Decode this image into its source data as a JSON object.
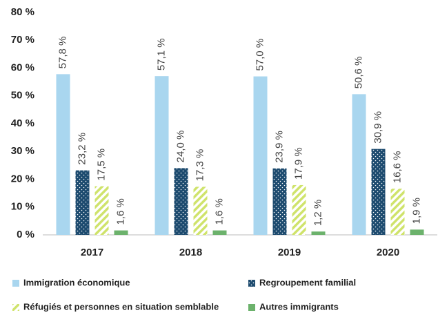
{
  "chart_data": {
    "type": "bar",
    "categories": [
      "2017",
      "2018",
      "2019",
      "2020"
    ],
    "series": [
      {
        "name": "Immigration économique",
        "color": "#a9d6ef",
        "pattern": "solid",
        "values": [
          57.8,
          57.1,
          57.0,
          50.6
        ],
        "value_labels": [
          "57,8 %",
          "57,1 %",
          "57,0 %",
          "50,6 %"
        ]
      },
      {
        "name": "Regroupement familial",
        "color": "#1c4a6e",
        "pattern": "dots",
        "values": [
          23.2,
          24.0,
          23.9,
          30.9
        ],
        "value_labels": [
          "23,2 %",
          "24,0 %",
          "23,9 %",
          "30,9 %"
        ]
      },
      {
        "name": "Réfugiés et personnes en situation semblable",
        "color": "#cfe36b",
        "pattern": "hatch",
        "values": [
          17.5,
          17.3,
          17.9,
          16.6
        ],
        "value_labels": [
          "17,5 %",
          "17,3 %",
          "17,9 %",
          "16,6 %"
        ]
      },
      {
        "name": "Autres immigrants",
        "color": "#6cb26c",
        "pattern": "solid",
        "values": [
          1.6,
          1.6,
          1.2,
          1.9
        ],
        "value_labels": [
          "1,6 %",
          "1,6 %",
          "1,2 %",
          "1,9 %"
        ]
      }
    ],
    "ylim": [
      0,
      80
    ],
    "yticks": [
      {
        "value": 0,
        "label": "0 %"
      },
      {
        "value": 10,
        "label": "10 %"
      },
      {
        "value": 20,
        "label": "20 %"
      },
      {
        "value": 30,
        "label": "30 %"
      },
      {
        "value": 40,
        "label": "40 %"
      },
      {
        "value": 50,
        "label": "50 %"
      },
      {
        "value": 60,
        "label": "60 %"
      },
      {
        "value": 70,
        "label": "70 %"
      },
      {
        "value": 80,
        "label": "80 %"
      }
    ],
    "grid": false
  }
}
